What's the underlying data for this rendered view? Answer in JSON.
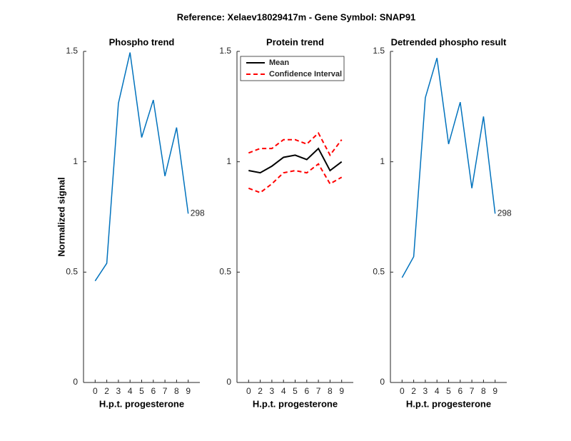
{
  "title": "Reference:  Xelaev18029417m - Gene Symbol:  SNAP91",
  "chart_data": [
    {
      "type": "line",
      "title": "Phospho trend",
      "xlabel": "H.p.t. progesterone",
      "ylabel": "Normalized signal",
      "categories": [
        "0",
        "2",
        "3",
        "4",
        "5",
        "6",
        "7",
        "8",
        "9"
      ],
      "series": [
        {
          "color": "#0072bd",
          "values": [
            0.46,
            0.54,
            1.265,
            1.495,
            1.11,
            1.28,
            0.935,
            1.155,
            0.765
          ]
        }
      ],
      "annotation": "298",
      "ylim": [
        0,
        1.5
      ],
      "yticks": [
        0,
        0.5,
        1,
        1.5
      ]
    },
    {
      "type": "band-line",
      "title": "Protein trend",
      "xlabel": "H.p.t. progesterone",
      "categories": [
        "0",
        "2",
        "3",
        "4",
        "5",
        "6",
        "7",
        "8",
        "9"
      ],
      "series": [
        {
          "name": "Mean",
          "color": "#000000",
          "values": [
            0.96,
            0.95,
            0.98,
            1.02,
            1.03,
            1.01,
            1.06,
            0.96,
            1.0
          ]
        },
        {
          "name": "Confidence Interval",
          "color": "#ff0000",
          "dashed": true,
          "upper": [
            1.04,
            1.06,
            1.06,
            1.1,
            1.1,
            1.08,
            1.13,
            1.03,
            1.1
          ],
          "lower": [
            0.88,
            0.86,
            0.9,
            0.95,
            0.96,
            0.95,
            0.99,
            0.9,
            0.93
          ]
        }
      ],
      "legend": "top-left",
      "ylim": [
        0,
        1.5
      ],
      "yticks": [
        0,
        0.5,
        1,
        1.5
      ]
    },
    {
      "type": "line",
      "title": "Detrended phospho result",
      "xlabel": "H.p.t. progesterone",
      "categories": [
        "0",
        "2",
        "3",
        "4",
        "5",
        "6",
        "7",
        "8",
        "9"
      ],
      "series": [
        {
          "color": "#0072bd",
          "values": [
            0.475,
            0.57,
            1.29,
            1.47,
            1.08,
            1.27,
            0.88,
            1.205,
            0.765
          ]
        }
      ],
      "annotation": "298",
      "ylim": [
        0,
        1.5
      ],
      "yticks": [
        0,
        0.5,
        1,
        1.5
      ]
    }
  ]
}
